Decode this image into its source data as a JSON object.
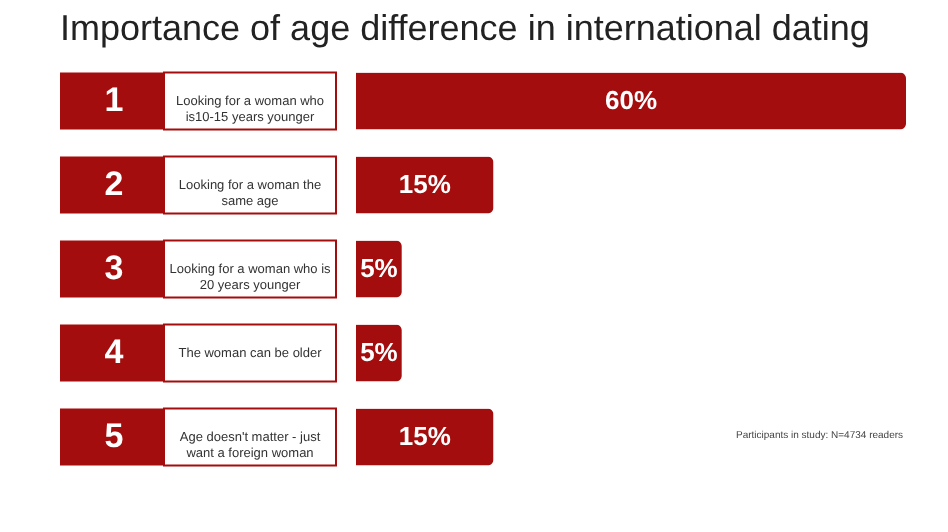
{
  "chart_data": {
    "type": "bar",
    "orientation": "horizontal",
    "title": "Importance of age difference in international dating",
    "categories": [
      "Looking for a woman who is10-15 years younger",
      "Looking for a woman the same age",
      "Looking for a woman who is 20 years younger",
      "The woman can be older",
      "Age doesn't matter - just want a foreign woman"
    ],
    "values": [
      60,
      15,
      5,
      5,
      15
    ],
    "value_labels": [
      "60%",
      "15%",
      "5%",
      "5%",
      "15%"
    ],
    "color": "#a30d0d",
    "xlim": [
      0,
      60
    ],
    "tick_labels": false,
    "annotations": [
      "1",
      "2",
      "3",
      "4",
      "5",
      "Participants in study: N=4734 readers"
    ]
  }
}
